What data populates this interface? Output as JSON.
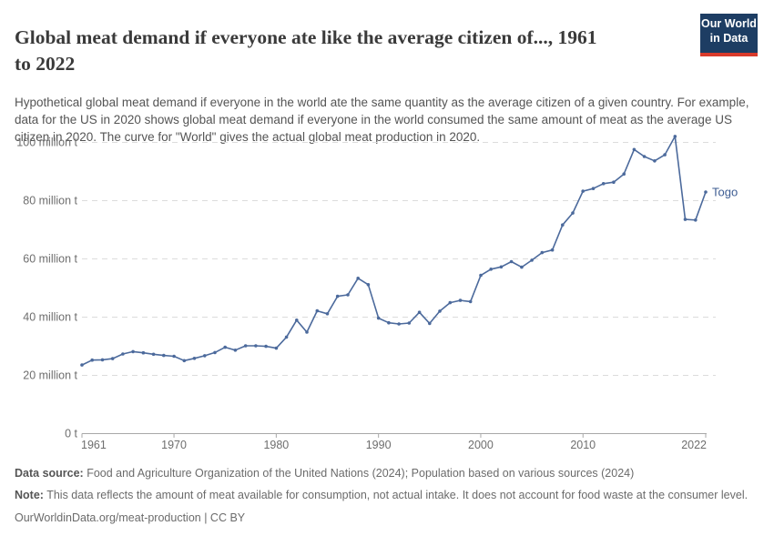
{
  "header": {
    "title": "Global meat demand if everyone ate like the average citizen of..., 1961 to 2022",
    "title_line1": "Global meat demand if everyone ate like the average citizen of..., 1961",
    "title_line2": "to 2022",
    "logo": {
      "line1": "Our World",
      "line2": "in Data"
    }
  },
  "subtitle": "Hypothetical global meat demand if everyone in the world ate the same quantity as the average citizen of a given country. For example, data for the US in 2020 shows global meat demand if everyone in the world consumed the same amount of meat as the average US citizen in 2020. The curve for \"World\" gives the actual global meat production in 2020.",
  "chart_data": {
    "type": "line",
    "title": "Global meat demand if everyone ate like the average citizen of..., 1961 to 2022",
    "y_unit": "million t",
    "xlim": [
      1961,
      2022
    ],
    "ylim": [
      0,
      105
    ],
    "grid": "dashed-horizontal",
    "legend": "series-end-label",
    "xticks": [
      1961,
      1970,
      1980,
      1990,
      2000,
      2010,
      2022
    ],
    "yticks": [
      {
        "value": 0,
        "label": "0 t"
      },
      {
        "value": 20,
        "label": "20 million t"
      },
      {
        "value": 40,
        "label": "40 million t"
      },
      {
        "value": 60,
        "label": "60 million t"
      },
      {
        "value": 80,
        "label": "80 million t"
      },
      {
        "value": 100,
        "label": "100 million t"
      }
    ],
    "x": [
      1961,
      1962,
      1963,
      1964,
      1965,
      1966,
      1967,
      1968,
      1969,
      1970,
      1971,
      1972,
      1973,
      1974,
      1975,
      1976,
      1977,
      1978,
      1979,
      1980,
      1981,
      1982,
      1983,
      1984,
      1985,
      1986,
      1987,
      1988,
      1989,
      1990,
      1991,
      1992,
      1993,
      1994,
      1995,
      1996,
      1997,
      1998,
      1999,
      2000,
      2001,
      2002,
      2003,
      2004,
      2005,
      2006,
      2007,
      2008,
      2009,
      2010,
      2011,
      2012,
      2013,
      2014,
      2015,
      2016,
      2017,
      2018,
      2019,
      2020,
      2021,
      2022
    ],
    "series": [
      {
        "name": "Togo",
        "color": "#4c6a9c",
        "label_color": "#3d5c92",
        "values": [
          23.4,
          25.1,
          25.2,
          25.6,
          27.2,
          28.0,
          27.6,
          27.1,
          26.7,
          26.4,
          24.9,
          25.7,
          26.6,
          27.7,
          29.5,
          28.5,
          30.0,
          30.0,
          29.8,
          29.2,
          33.0,
          38.8,
          34.7,
          42.0,
          41.0,
          47.0,
          47.5,
          53.2,
          51.0,
          39.5,
          37.9,
          37.5,
          37.8,
          41.5,
          37.7,
          41.9,
          44.8,
          45.6,
          45.2,
          54.2,
          56.3,
          57.1,
          58.9,
          57.0,
          59.4,
          62.0,
          62.9,
          71.5,
          75.6,
          83.1,
          84.0,
          85.7,
          86.2,
          89.0,
          97.4,
          95.0,
          93.5,
          95.6,
          101.9,
          73.4,
          73.2,
          82.8
        ]
      }
    ]
  },
  "footer": {
    "data_source_label": "Data source:",
    "data_source_text": " Food and Agriculture Organization of the United Nations (2024); Population based on various sources (2024)",
    "note_label": "Note:",
    "note_text": " This data reflects the amount of meat available for consumption, not actual intake. It does not account for food waste at the consumer level.",
    "citation": "OurWorldinData.org/meat-production | CC BY"
  },
  "colors": {
    "logo_navy": "#1d3d63",
    "logo_red": "#d93a2b",
    "line_blue": "#4c6a9c",
    "grid_gray": "#dcdcdc",
    "axis_gray": "#a8a8a8",
    "tick_text_gray": "#6e6e6e"
  }
}
